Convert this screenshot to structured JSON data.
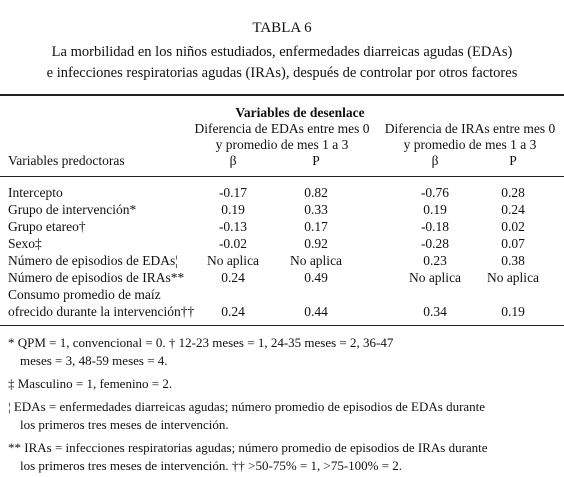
{
  "header": {
    "title": "TABLA 6",
    "caption": [
      "La morbilidad en los niños estudiados, enfermedades diarreicas agudas (EDAs)",
      "e infecciones respiratorias agudas (IRAs), después de controlar por otros factores"
    ]
  },
  "table": {
    "group_header": "Variables de desenlace",
    "outcome_headers": [
      [
        "Diferencia de EDAs entre mes 0",
        "y promedio de mes 1 a 3"
      ],
      [
        "Diferencia de IRAs entre mes 0",
        "y promedio de mes 1 a 3"
      ]
    ],
    "columns": [
      "Variables predoctoras",
      "β",
      "P",
      "β",
      "P"
    ],
    "rows": [
      {
        "label": [
          "Intercepto"
        ],
        "values": [
          "-0.17",
          "0.82",
          "-0.76",
          "0.28"
        ]
      },
      {
        "label": [
          "Grupo de intervención*"
        ],
        "values": [
          "0.19",
          "0.33",
          "0.19",
          "0.24"
        ]
      },
      {
        "label": [
          "Grupo etareo†"
        ],
        "values": [
          "-0.13",
          "0.17",
          "-0.18",
          "0.02"
        ]
      },
      {
        "label": [
          "Sexo‡"
        ],
        "values": [
          "-0.02",
          "0.92",
          "-0.28",
          "0.07"
        ]
      },
      {
        "label": [
          "Número de episodios de EDAs¦"
        ],
        "values": [
          "No aplica",
          "No aplica",
          "0.23",
          "0.38"
        ]
      },
      {
        "label": [
          "Número de episodios de IRAs**"
        ],
        "values": [
          "0.24",
          "0.49",
          "No aplica",
          "No aplica"
        ]
      },
      {
        "label": [
          "Consumo promedio de maíz",
          "ofrecido durante la intervención††"
        ],
        "values": [
          "0.24",
          "0.44",
          "0.34",
          "0.19"
        ]
      }
    ]
  },
  "footnotes": [
    [
      "* QPM = 1, convencional = 0.    † 12-23 meses = 1, 24-35 meses = 2, 36-47",
      "meses = 3, 48-59 meses = 4."
    ],
    [
      "‡ Masculino = 1, femenino = 2."
    ],
    [
      "¦ EDAs = enfermedades diarreicas agudas; número promedio de episodios de EDAs durante",
      "los primeros tres meses de intervención."
    ],
    [
      "** IRAs = infecciones respiratorias agudas; número promedio de episodios de IRAs durante",
      "los primeros tres meses de intervención.     †† >50-75% = 1, >75-100% = 2."
    ]
  ]
}
